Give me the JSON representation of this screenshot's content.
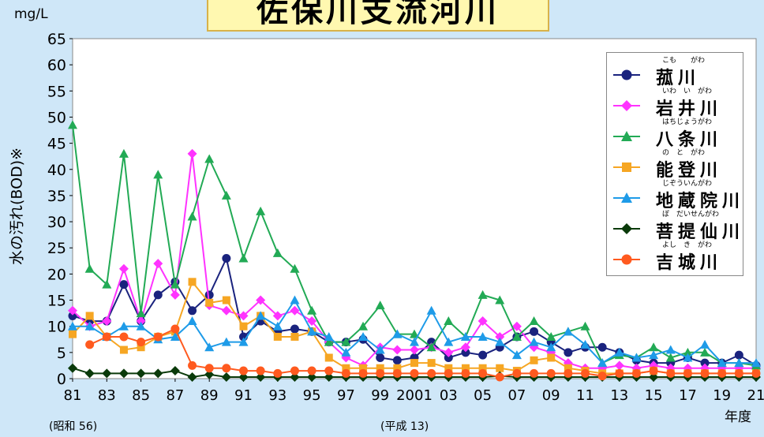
{
  "title": "佐保川支流河川",
  "unit_label": "mg/L",
  "y_axis_label": "水の汚れ(BOD)※",
  "x_axis_unit": "年度",
  "era_note_1": "(昭和 56)",
  "era_note_2": "(平成 13)",
  "colors": {
    "background": "#cfe7f8",
    "komo": "#1a237e",
    "iwai": "#ff33ff",
    "hachijo": "#22aa55",
    "noto": "#f6a623",
    "jizoin": "#1e9be8",
    "bodaisen": "#0a3a0a",
    "yoshiki": "#ff5a1f"
  },
  "chart_data": {
    "type": "line",
    "x": [
      1981,
      1982,
      1983,
      1984,
      1985,
      1986,
      1987,
      1988,
      1989,
      1990,
      1991,
      1992,
      1993,
      1994,
      1995,
      1996,
      1997,
      1998,
      1999,
      2000,
      2001,
      2002,
      2003,
      2004,
      2005,
      2006,
      2007,
      2008,
      2009,
      2010,
      2011,
      2012,
      2013,
      2014,
      2015,
      2016,
      2017,
      2018,
      2019,
      2020,
      2021
    ],
    "x_tick_labels": [
      "81",
      "83",
      "85",
      "87",
      "89",
      "91",
      "93",
      "95",
      "97",
      "99",
      "2001",
      "03",
      "05",
      "07",
      "09",
      "11",
      "13",
      "15",
      "17",
      "19",
      "21"
    ],
    "x_tick_values": [
      1981,
      1983,
      1985,
      1987,
      1989,
      1991,
      1993,
      1995,
      1997,
      1999,
      2001,
      2003,
      2005,
      2007,
      2009,
      2011,
      2013,
      2015,
      2017,
      2019,
      2021
    ],
    "y_ticks": [
      0,
      5,
      10,
      15,
      20,
      25,
      30,
      35,
      40,
      45,
      50,
      55,
      60,
      65
    ],
    "ylim": [
      0,
      65
    ],
    "xlim": [
      1981,
      2021
    ],
    "grid": "none",
    "legend_position": "top-right",
    "series": [
      {
        "name": "菰川",
        "ruby": "こも　　がわ",
        "color_key": "komo",
        "marker": "circle",
        "values": [
          12,
          11,
          11,
          18,
          11,
          16,
          18.5,
          13,
          16,
          23,
          8,
          11,
          9,
          9.5,
          9,
          7,
          7,
          7.5,
          4,
          3.5,
          4,
          7,
          4,
          5,
          4.5,
          6,
          8,
          9,
          7,
          5,
          6,
          6,
          5,
          3.5,
          3,
          3,
          4,
          3,
          3,
          4.5,
          2.5
        ]
      },
      {
        "name": "岩井川",
        "ruby": "いわ　い　がわ",
        "color_key": "iwai",
        "marker": "diamond",
        "values": [
          13,
          10,
          11,
          21,
          11,
          22,
          16,
          43,
          14,
          13,
          12,
          15,
          12,
          13,
          11,
          7,
          4,
          2.5,
          6,
          5.5,
          5.5,
          6,
          5,
          6,
          11,
          8,
          10,
          6,
          5,
          3,
          2,
          2,
          2.5,
          2,
          2.5,
          2,
          2,
          2,
          2,
          2,
          2
        ]
      },
      {
        "name": "八条川",
        "ruby": "はちじょうがわ",
        "color_key": "hachijo",
        "marker": "triangle",
        "values": [
          48.5,
          21,
          18,
          43,
          12.5,
          39,
          18,
          31,
          42,
          35,
          23,
          32,
          24,
          21,
          13,
          7,
          7,
          10,
          14,
          8.5,
          8.5,
          6,
          11,
          8,
          16,
          15,
          8,
          11,
          8,
          9,
          10,
          3,
          4.5,
          4,
          6,
          4,
          5,
          5,
          3,
          3,
          2.5
        ]
      },
      {
        "name": "能登川",
        "ruby": "の　と　がわ",
        "color_key": "noto",
        "marker": "square",
        "values": [
          8.5,
          12,
          8,
          5.5,
          6,
          8,
          9,
          18.5,
          14.5,
          15,
          10,
          12,
          8,
          8,
          9,
          4,
          2,
          2,
          2,
          2,
          3,
          3,
          2,
          2,
          2,
          2,
          1.5,
          3.5,
          4,
          2,
          1.5,
          1,
          1,
          1,
          1.5,
          1,
          1,
          1,
          1,
          1,
          1
        ]
      },
      {
        "name": "地蔵院川",
        "ruby": "じぞういんがわ",
        "color_key": "jizoin",
        "marker": "triangle",
        "values": [
          10,
          10,
          8,
          10,
          10,
          7.5,
          8,
          11,
          6,
          7,
          7,
          12,
          10,
          15,
          9,
          8,
          5,
          8,
          5.5,
          8.5,
          7,
          13,
          7,
          8,
          8,
          7,
          4.5,
          7,
          6,
          9,
          6.5,
          3,
          5,
          4,
          4.5,
          5.5,
          4,
          6.5,
          3,
          3,
          3
        ]
      },
      {
        "name": "菩提仙川",
        "ruby": "ぼ　だいせんがわ",
        "color_key": "bodaisen",
        "marker": "diamond",
        "values": [
          2,
          1,
          1,
          1,
          1,
          1,
          1.5,
          0.3,
          0.8,
          0.3,
          0.3,
          0.3,
          0.3,
          0.3,
          0.3,
          0.3,
          0.3,
          0.3,
          0.3,
          0.3,
          0.3,
          0.3,
          0.3,
          0.3,
          0.3,
          0.5,
          0.3,
          0.3,
          0.3,
          0.3,
          0.3,
          0.3,
          0.3,
          0.3,
          0.3,
          0.3,
          0.3,
          0.3,
          0.3,
          0.3,
          0.3
        ]
      },
      {
        "name": "吉城川",
        "ruby": "よし　き　がわ",
        "color_key": "yoshiki",
        "marker": "circle",
        "values": [
          null,
          6.5,
          8,
          8,
          7,
          8,
          9.5,
          2.5,
          2,
          2,
          1.5,
          1.5,
          1,
          1.5,
          1.5,
          1.5,
          1,
          1,
          1,
          1,
          1,
          1,
          1,
          1,
          1,
          0.3,
          1,
          1,
          1,
          1,
          1,
          0.5,
          1,
          1,
          1.5,
          1,
          1,
          1,
          1,
          1,
          1
        ]
      }
    ]
  }
}
